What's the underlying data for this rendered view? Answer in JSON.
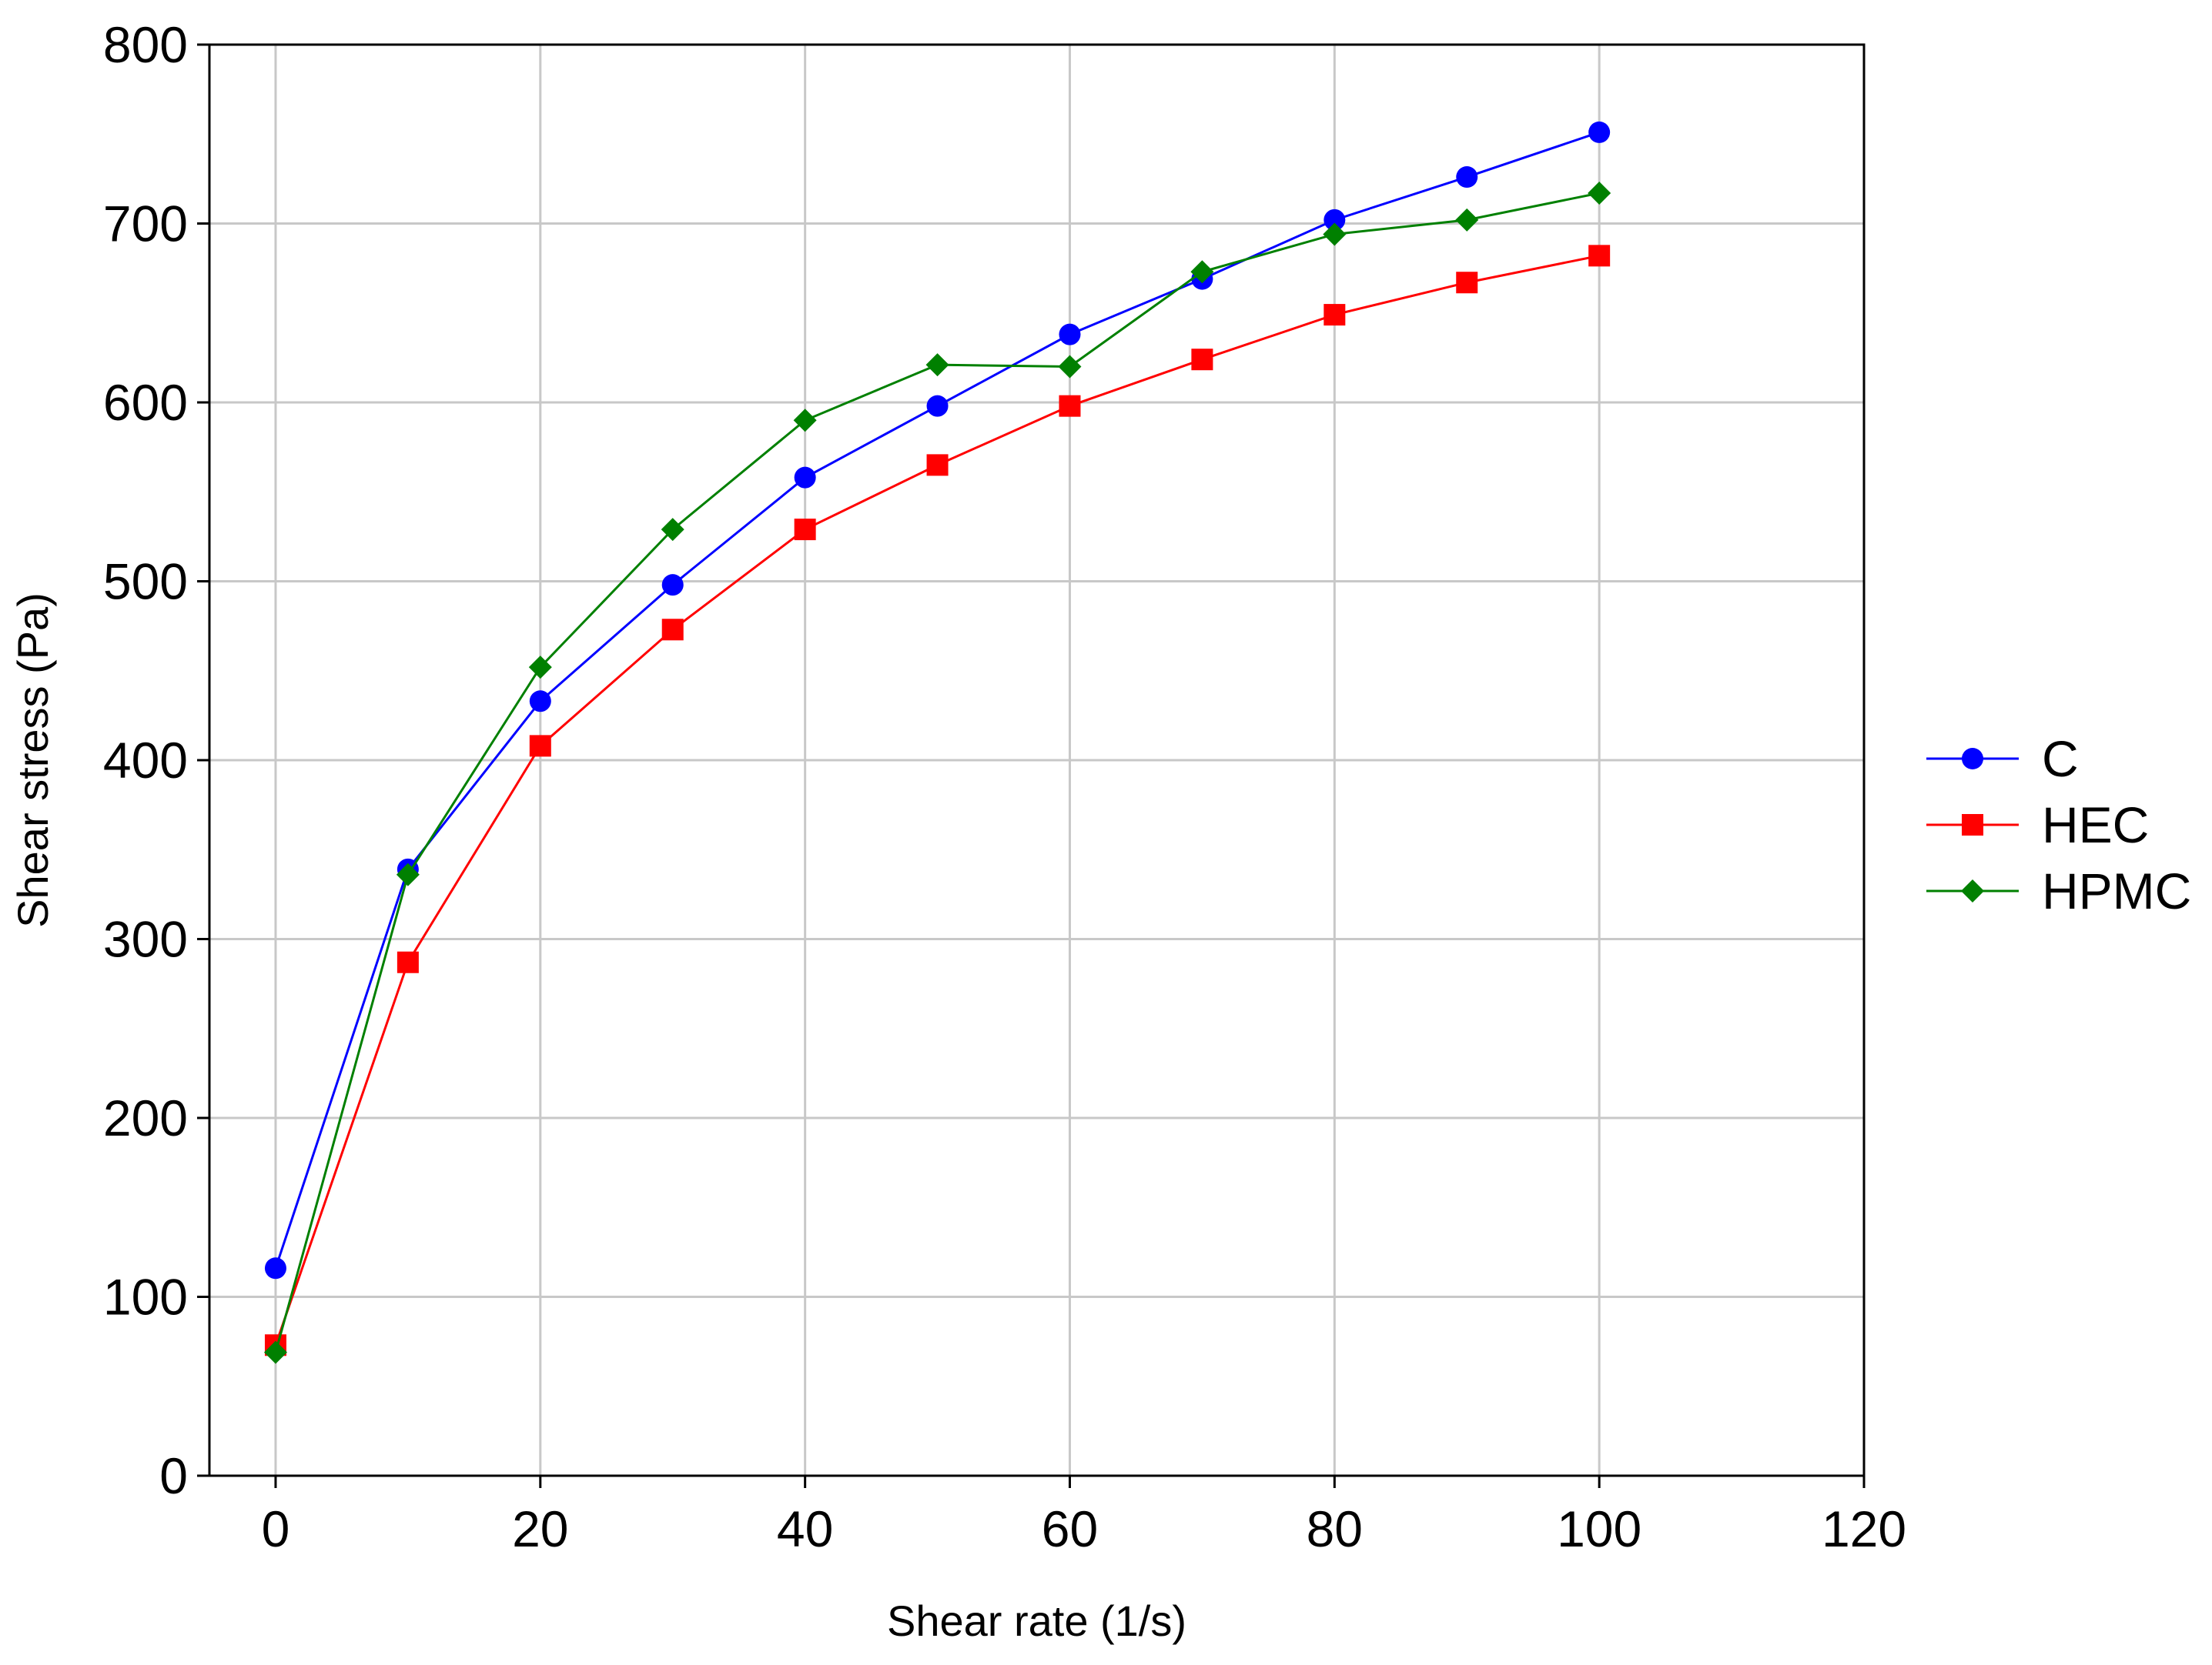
{
  "chart_data": {
    "type": "line",
    "title": "",
    "xlabel": "Shear rate (1/s)",
    "ylabel": "Shear stress (Pa)",
    "xlim": [
      -5,
      120
    ],
    "ylim": [
      0,
      800
    ],
    "xticks": [
      0,
      20,
      40,
      60,
      80,
      100,
      120
    ],
    "yticks": [
      0,
      100,
      200,
      300,
      400,
      500,
      600,
      700,
      800
    ],
    "grid": true,
    "legend_position": "right",
    "x": [
      0,
      10,
      20,
      30,
      40,
      50,
      60,
      70,
      80,
      90,
      100
    ],
    "series": [
      {
        "name": "C",
        "color": "#0000ff",
        "marker": "circle",
        "values": [
          116,
          339,
          433,
          498,
          558,
          598,
          638,
          669,
          702,
          726,
          751
        ]
      },
      {
        "name": "HEC",
        "color": "#ff0000",
        "marker": "square",
        "values": [
          73,
          287,
          408,
          473,
          529,
          565,
          598,
          624,
          649,
          667,
          682
        ]
      },
      {
        "name": "HPMC",
        "color": "#008000",
        "marker": "diamond",
        "values": [
          69,
          336,
          452,
          529,
          590,
          621,
          620,
          673,
          694,
          702,
          717
        ]
      }
    ]
  }
}
